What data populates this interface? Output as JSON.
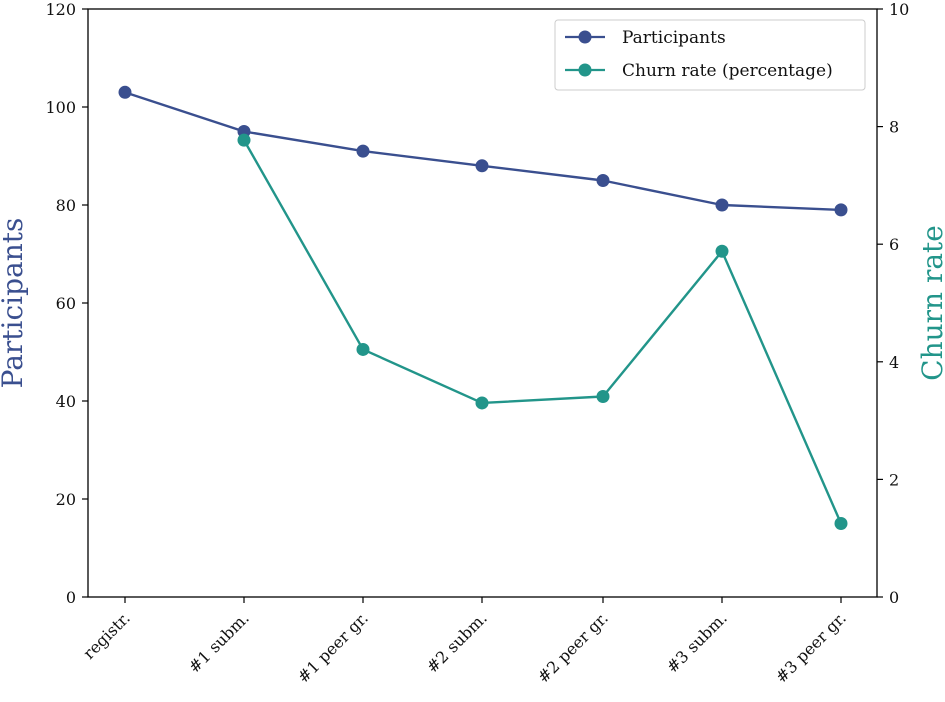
{
  "chart_data": {
    "type": "line",
    "categories": [
      "registr.",
      "#1 subm.",
      "#1 peer gr.",
      "#2 subm.",
      "#2 peer gr.",
      "#3 subm.",
      "#3 peer gr."
    ],
    "series": [
      {
        "name": "Participants",
        "axis": "left",
        "color": "#3a4f8f",
        "values": [
          103,
          95,
          91,
          88,
          85,
          80,
          79
        ]
      },
      {
        "name": "Churn rate (percentage)",
        "axis": "right",
        "color": "#22958a",
        "values": [
          null,
          7.77,
          4.21,
          3.3,
          3.41,
          5.88,
          1.25
        ]
      }
    ],
    "y_left": {
      "label": "Participants",
      "min": 0,
      "max": 120,
      "ticks": [
        0,
        20,
        40,
        60,
        80,
        100,
        120
      ],
      "color": "#3a4f8f"
    },
    "y_right": {
      "label": "Churn rate",
      "min": 0,
      "max": 10,
      "ticks": [
        0,
        2,
        4,
        6,
        8,
        10
      ],
      "color": "#22958a"
    },
    "legend": {
      "position": "top-right",
      "entries": [
        "Participants",
        "Churn rate (percentage)"
      ]
    }
  }
}
